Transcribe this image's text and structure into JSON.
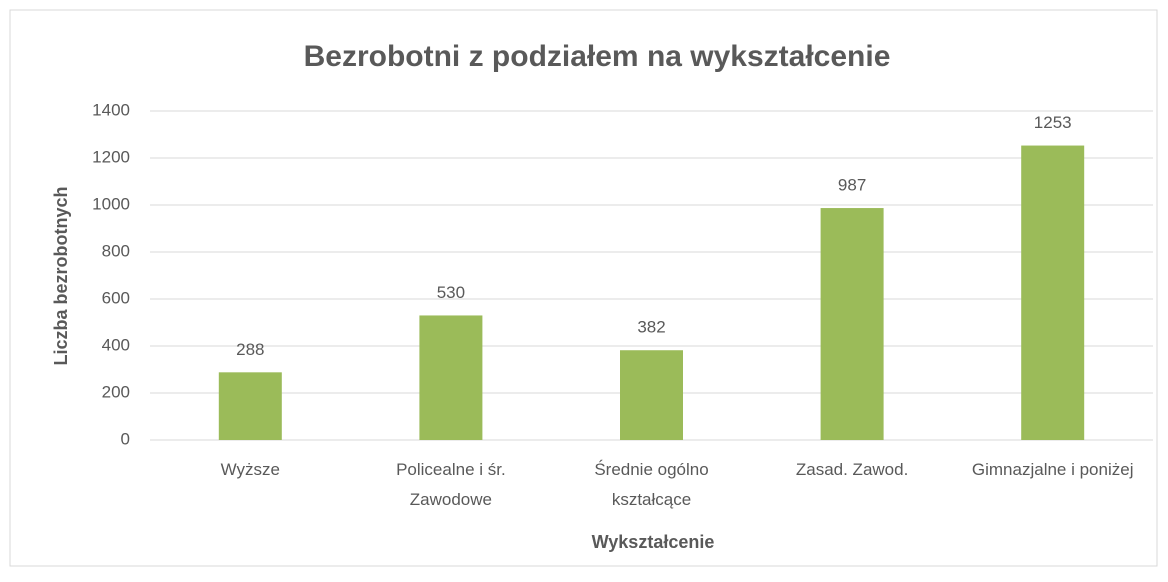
{
  "chart_data": {
    "type": "bar",
    "title": "Bezrobotni z podziałem na wykształcenie",
    "x_label": "Wykształcenie",
    "y_label": "Liczba bezrobotnych",
    "categories": [
      "Wyższe",
      "Policealne i śr. Zawodowe",
      "Średnie ogólno kształcące",
      "Zasad. Zawod.",
      "Gimnazjalne i poniżej"
    ],
    "values": [
      288,
      530,
      382,
      987,
      1253
    ],
    "color": "#9bbb59",
    "ylim": [
      0,
      1400
    ],
    "yticks": [
      0,
      200,
      400,
      600,
      800,
      1000,
      1200,
      1400
    ],
    "grid": true
  }
}
